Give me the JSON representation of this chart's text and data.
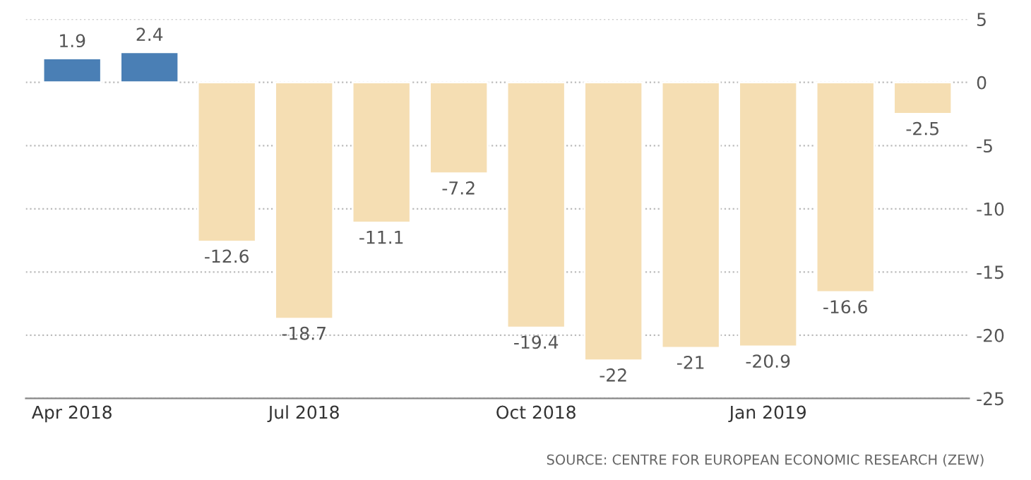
{
  "chart_data": {
    "type": "bar",
    "categories": [
      "Apr 2018",
      null,
      null,
      "Jul 2018",
      null,
      null,
      "Oct 2018",
      null,
      null,
      "Jan 2019",
      null,
      null
    ],
    "values": [
      1.9,
      2.4,
      -12.6,
      -18.7,
      -11.1,
      -7.2,
      -19.4,
      -22,
      -21,
      -20.9,
      -16.6,
      -2.5
    ],
    "colors": [
      "#4a7fb5",
      "#4a7fb5",
      "#f5deb3",
      "#f5deb3",
      "#f5deb3",
      "#f5deb3",
      "#f5deb3",
      "#f5deb3",
      "#f5deb3",
      "#f5deb3",
      "#f5deb3",
      "#f5deb3"
    ],
    "ylim": [
      -25,
      5
    ],
    "yticks": [
      5,
      0,
      -5,
      -10,
      -15,
      -20,
      -25
    ],
    "grid": "y",
    "data_labels": true,
    "annotations": [
      "SOURCE: CENTRE FOR EUROPEAN ECONOMIC RESEARCH (ZEW)"
    ]
  }
}
